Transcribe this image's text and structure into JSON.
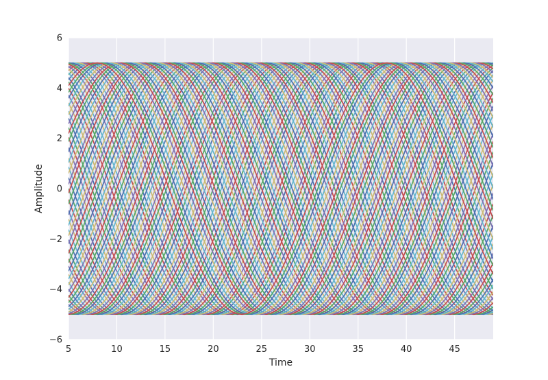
{
  "chart_data": {
    "type": "line",
    "title": "",
    "xlabel": "Time",
    "ylabel": "Amplitude",
    "xlim": [
      5,
      49
    ],
    "ylim": [
      -6,
      6
    ],
    "x_ticks": [
      5,
      10,
      15,
      20,
      25,
      30,
      35,
      40,
      45
    ],
    "y_ticks": [
      -6,
      -4,
      -2,
      0,
      2,
      4,
      6
    ],
    "x_tick_labels": [
      "5",
      "10",
      "15",
      "20",
      "25",
      "30",
      "35",
      "40",
      "45"
    ],
    "y_tick_labels": [
      "−6",
      "−4",
      "−2",
      "0",
      "2",
      "4",
      "6"
    ],
    "grid": true,
    "background": "#eaeaf2",
    "grid_color": "#ffffff",
    "palette": [
      "#4c72b0",
      "#55a868",
      "#c44e52",
      "#8172b2",
      "#ccb974",
      "#64b5cd"
    ],
    "x_start": 5,
    "x_end": 49,
    "amplitude": 5,
    "period": 30,
    "phases_deg": [
      0,
      5,
      10,
      14,
      19,
      24,
      29,
      34,
      38,
      43,
      48,
      53,
      58,
      62,
      67,
      72,
      77,
      82,
      86,
      91,
      96,
      101,
      106,
      110,
      115,
      120,
      125,
      130,
      134,
      139,
      144,
      149,
      154,
      158,
      163,
      168,
      173,
      178,
      182,
      187,
      192,
      197,
      202,
      206,
      211,
      216,
      221,
      226,
      230,
      235,
      240,
      245,
      250,
      254,
      259,
      264,
      269,
      274,
      278,
      283,
      288,
      293,
      298,
      302,
      307,
      312,
      317,
      322,
      326,
      331,
      336,
      341,
      346,
      350,
      355
    ]
  }
}
